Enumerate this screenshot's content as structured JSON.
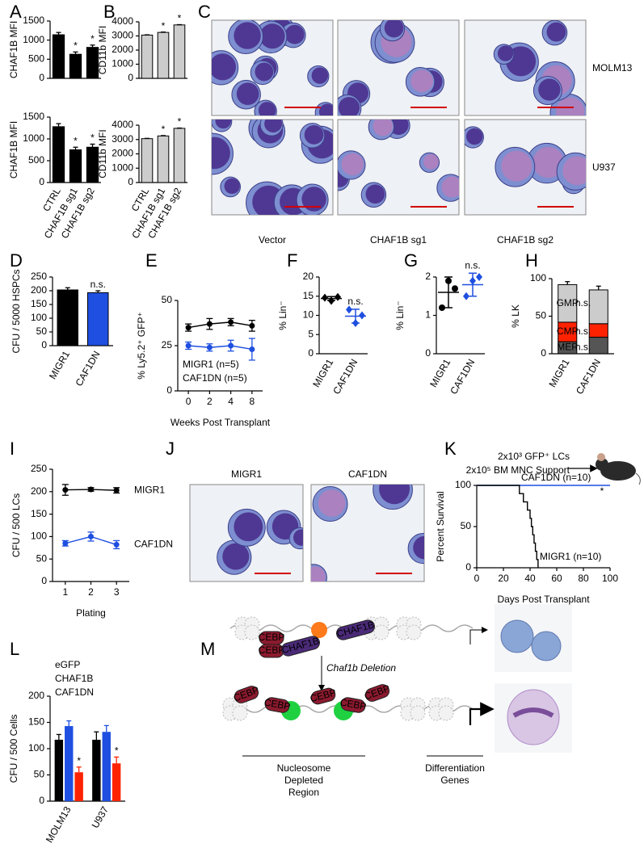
{
  "panel_letters": [
    "A",
    "B",
    "C",
    "D",
    "E",
    "F",
    "G",
    "H",
    "I",
    "J",
    "K",
    "L",
    "M"
  ],
  "chart_data": [
    {
      "type": "bar",
      "ylabel": "CHAF1B MFI",
      "categories": [
        null,
        null,
        null
      ],
      "series": [
        {
          "color": "#000000",
          "values": [
            1140,
            630,
            810
          ],
          "errors": [
            60,
            60,
            60
          ],
          "notes": [
            null,
            "*",
            "*"
          ]
        }
      ],
      "note_color": "#000000",
      "ylim": [
        0,
        1500
      ],
      "yticks": [
        0,
        500,
        1000,
        1500
      ]
    },
    {
      "type": "bar",
      "ylabel": "CHAF1B MFI",
      "categories": [
        "CTRL",
        "CHAF1B sg1",
        "CHAF1B sg2"
      ],
      "series": [
        {
          "color": "#000000",
          "values": [
            1280,
            750,
            810
          ],
          "errors": [
            70,
            60,
            70
          ],
          "notes": [
            null,
            "*",
            "*"
          ]
        }
      ],
      "note_color": "#000000",
      "ylim": [
        0,
        1500
      ],
      "yticks": [
        0,
        500,
        1000,
        1500
      ]
    },
    {
      "type": "bar",
      "ylabel": "CD11b MFI",
      "categories": [
        null,
        null,
        null
      ],
      "series": [
        {
          "color": "#cccccc",
          "values": [
            3060,
            3250,
            3780
          ],
          "errors": [
            20,
            25,
            20
          ],
          "notes": [
            null,
            "*",
            "*"
          ]
        }
      ],
      "note_color": "#aaaaaa",
      "ylim": [
        0,
        4000
      ],
      "yticks": [
        0,
        1000,
        2000,
        3000,
        4000
      ]
    },
    {
      "type": "bar",
      "ylabel": "CD11b MFI",
      "categories": [
        "CTRL",
        "CHAF1B sg1",
        "CHAF1B sg2"
      ],
      "series": [
        {
          "color": "#cccccc",
          "values": [
            3060,
            3250,
            3780
          ],
          "errors": [
            20,
            25,
            20
          ],
          "notes": [
            null,
            "*",
            "*"
          ]
        }
      ],
      "note_color": "#aaaaaa",
      "ylim": [
        0,
        4000
      ],
      "yticks": [
        0,
        1000,
        2000,
        3000,
        4000
      ]
    },
    {
      "type": "bar",
      "ylabel": "CFU / 5000 HSPCs",
      "categories": [
        "MIGR1",
        "CAF1DN"
      ],
      "category_colors": [
        "#000000",
        "#1f4fe0"
      ],
      "series": [
        {
          "colors": [
            "#000000",
            "#1f4fe0"
          ],
          "values": [
            203,
            193
          ],
          "errors": [
            8,
            7
          ],
          "notes": [
            null,
            "n.s."
          ]
        }
      ],
      "note_color": "#000000",
      "ylim": [
        0,
        250
      ],
      "yticks": [
        0,
        50,
        100,
        150,
        200,
        250
      ]
    },
    {
      "type": "line",
      "ylabel": "% Ly5.2⁺ GFP⁺",
      "xlabel": "Weeks Post Transplant",
      "categories": [
        0,
        2,
        4,
        8
      ],
      "series": [
        {
          "name": "MIGR1 (n=5)",
          "color": "#000000",
          "values": [
            35,
            37,
            38,
            36
          ],
          "errors": [
            2,
            3,
            2,
            3
          ]
        },
        {
          "name": "CAF1DN (n=5)",
          "color": "#1f4fe0",
          "values": [
            25,
            24,
            25,
            23
          ],
          "errors": [
            2,
            2,
            3,
            6
          ]
        }
      ],
      "ylim": [
        0,
        50
      ],
      "yticks": [
        0,
        25,
        50
      ],
      "legend": "lower left"
    },
    {
      "type": "dot",
      "ylabel": "% Lin⁻",
      "categories": [
        "MIGR1",
        "CAF1DN"
      ],
      "category_colors": [
        "#000000",
        "#1f4fe0"
      ],
      "points": [
        [
          14.6,
          13.8,
          14.8
        ],
        [
          11.5,
          8,
          10
        ]
      ],
      "means": [
        14.4,
        9.8
      ],
      "sds": [
        0.5,
        1.8
      ],
      "colors": [
        "#000000",
        "#1f4fe0"
      ],
      "markers": [
        "diamond",
        "diamond"
      ],
      "notes": [
        null,
        "n.s."
      ],
      "ylim": [
        0,
        20
      ],
      "yticks": [
        0,
        5,
        10,
        15,
        20
      ]
    },
    {
      "type": "dot",
      "ylabel": "% Lin⁻",
      "categories": [
        "MIGR1",
        "CAF1DN"
      ],
      "category_colors": [
        "#000000",
        "#1f4fe0"
      ],
      "points": [
        [
          1.2,
          1.9,
          1.7
        ],
        [
          1.5,
          1.9,
          2.0
        ]
      ],
      "means": [
        1.6,
        1.8
      ],
      "sds": [
        0.4,
        0.3
      ],
      "colors": [
        "#000000",
        "#1f4fe0"
      ],
      "markers": [
        "circle",
        "diamond"
      ],
      "notes": [
        null,
        "n.s."
      ],
      "ylim": [
        0,
        2
      ],
      "yticks": [
        0,
        1,
        2
      ]
    },
    {
      "type": "stacked_bar",
      "ylabel": "% LK",
      "categories": [
        "MIGR1",
        "CAF1DN"
      ],
      "category_colors": [
        "#000000",
        "#000000"
      ],
      "series": [
        {
          "name": "MEP",
          "color": "#555555",
          "values": [
            16,
            22
          ],
          "errors": [
            3,
            2
          ],
          "note": "n.s."
        },
        {
          "name": "CMP",
          "color": "#ff2200",
          "values": [
            26,
            18
          ],
          "errors": [
            4,
            5
          ],
          "note": "n.s."
        },
        {
          "name": "GMP",
          "color": "#cccccc",
          "values": [
            50,
            45
          ],
          "errors": [
            4,
            5
          ],
          "note": "n.s."
        }
      ],
      "ylim": [
        0,
        100
      ],
      "yticks": [
        0,
        50,
        100
      ]
    },
    {
      "type": "line",
      "ylabel": "CFU / 500 LCs",
      "xlabel": "Plating",
      "categories": [
        1,
        2,
        3
      ],
      "series": [
        {
          "name": "MIGR1",
          "color": "#000000",
          "values": [
            204,
            205,
            203
          ],
          "errors": [
            12,
            4,
            6
          ]
        },
        {
          "name": "CAF1DN",
          "color": "#1f4fe0",
          "values": [
            85,
            100,
            82
          ],
          "errors": [
            6,
            10,
            9
          ]
        }
      ],
      "ylim": [
        0,
        250
      ],
      "yticks": [
        0,
        50,
        100,
        150,
        200,
        250
      ],
      "legend": "right"
    },
    {
      "type": "line",
      "ylabel": "Percent Survival",
      "xlabel": "Days Post Transplant",
      "annotations": [
        "2x10³ GFP⁺ LCs",
        "2x10⁵ BM MNC Support"
      ],
      "xlim": [
        0,
        100
      ],
      "xticks": [
        0,
        20,
        40,
        60,
        80,
        100
      ],
      "ylim": [
        0,
        100
      ],
      "yticks": [
        0,
        50,
        100
      ],
      "series": [
        {
          "name": "CAF1DN (n=10)",
          "color": "#1f4fe0",
          "x": [
            0,
            100
          ],
          "values": [
            100,
            100
          ],
          "note": "*"
        },
        {
          "name": "MIGR1 (n=10)",
          "color": "#000000",
          "x": [
            0,
            32,
            32,
            35,
            35,
            38,
            38,
            40,
            40,
            41,
            41,
            42,
            42,
            43,
            43,
            44,
            44,
            45,
            45,
            46,
            46
          ],
          "values": [
            100,
            100,
            90,
            90,
            80,
            80,
            70,
            70,
            60,
            60,
            50,
            50,
            40,
            40,
            30,
            30,
            20,
            20,
            10,
            10,
            0
          ]
        }
      ],
      "legend": "inline"
    },
    {
      "type": "grouped_bar",
      "ylabel": "CFU / 500 Cells",
      "categories": [
        "MOLM13",
        "U937"
      ],
      "series": [
        {
          "name": "eGFP",
          "color": "#000000",
          "values": [
            117,
            117
          ],
          "errors": [
            10,
            15
          ]
        },
        {
          "name": "CHAF1B",
          "color": "#1f4fe0",
          "values": [
            143,
            132
          ],
          "errors": [
            10,
            12
          ]
        },
        {
          "name": "CAF1DN",
          "color": "#ff2200",
          "values": [
            55,
            72
          ],
          "errors": [
            10,
            12
          ],
          "notes": [
            "*",
            "*"
          ]
        }
      ],
      "note_color": "#000000",
      "ylim": [
        0,
        200
      ],
      "yticks": [
        0,
        50,
        100,
        150,
        200
      ],
      "legend": "upper left"
    }
  ],
  "micrographs": {
    "C": {
      "row_labels": [
        "MOLM13",
        "U937"
      ],
      "col_labels": [
        "Vector",
        "CHAF1B sg1",
        "CHAF1B sg2"
      ]
    },
    "J": {
      "col_labels": [
        "MIGR1",
        "CAF1DN"
      ]
    }
  },
  "diagram": {
    "top_labels": [
      "CEBP",
      "CEBP",
      "CHAF1B",
      "CHAF1B"
    ],
    "arrow_label": "Chaf1b Deletion",
    "bottom_labels": [
      "CEBP",
      "CEBP",
      "CEBP",
      "CEBP",
      "CEBP"
    ],
    "region_label": [
      "Nucleosome",
      "Depleted",
      "Region"
    ],
    "genes_label": [
      "Differentiation",
      "Genes"
    ]
  }
}
